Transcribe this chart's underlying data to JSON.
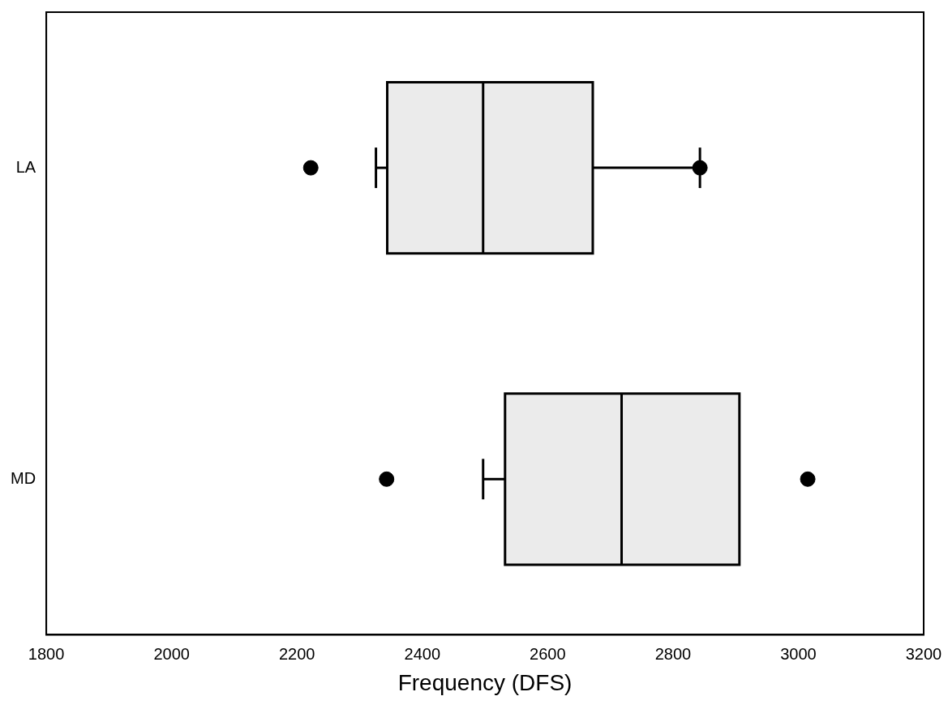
{
  "chart_data": {
    "type": "box",
    "orientation": "horizontal",
    "categories": [
      "LA",
      "MD"
    ],
    "color": "#ebebeb",
    "boxes": [
      {
        "low": 2326,
        "q1": 2344,
        "median": 2497,
        "q3": 2672,
        "high": 2843,
        "outliers": [
          2222,
          2843
        ]
      },
      {
        "low": 2497,
        "q1": 2532,
        "median": 2718,
        "q3": 2906,
        "high": 2906,
        "outliers": [
          2343,
          3015
        ]
      }
    ],
    "xlabel": "Frequency (DFS)",
    "xlim": [
      1800,
      3200
    ],
    "xticks": [
      1800,
      2000,
      2200,
      2400,
      2600,
      2800,
      3000,
      3200
    ]
  }
}
